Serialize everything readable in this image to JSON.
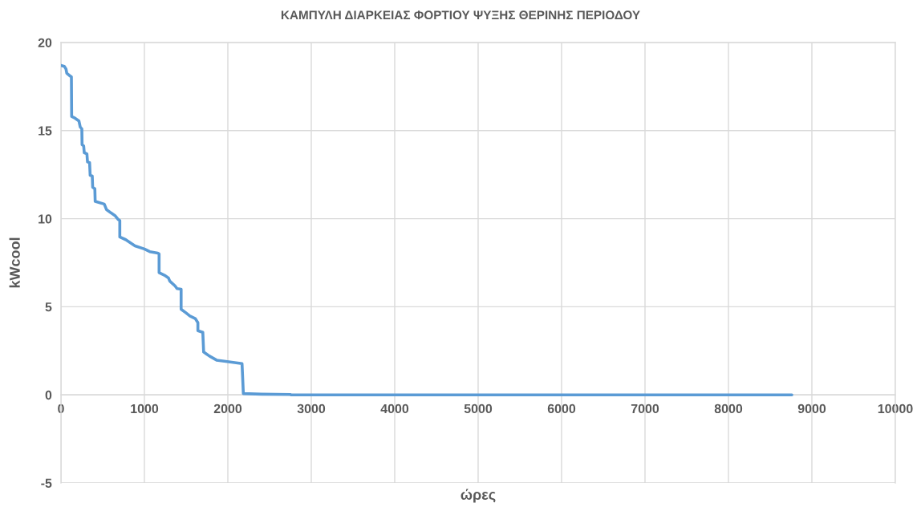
{
  "chart_data": {
    "type": "line",
    "title": "ΚΑΜΠΥΛΗ ΔΙΑΡΚΕΙΑΣ ΦΟΡΤΙΟΥ ΨΥΞΗΣ ΘΕΡΙΝΗΣ ΠΕΡΙΟΔΟΥ",
    "xlabel": "ώρες",
    "ylabel": "kWcool",
    "series": [
      {
        "color": "#5b9bd5",
        "x": [
          0,
          40,
          60,
          70,
          110,
          125,
          128,
          170,
          215,
          231,
          250,
          253,
          272,
          279,
          311,
          318,
          343,
          350,
          375,
          380,
          406,
          410,
          519,
          545,
          599,
          647,
          686,
          705,
          705,
          776,
          887,
          1000,
          1064,
          1160,
          1176,
          1176,
          1240,
          1288,
          1304,
          1368,
          1391,
          1440,
          1440,
          1497,
          1545,
          1609,
          1641,
          1641,
          1700,
          1710,
          1780,
          1865,
          1994,
          2100,
          2170,
          2186,
          2400,
          2747,
          2760,
          8760
        ],
        "values": [
          18.7,
          18.65,
          18.5,
          18.25,
          18.1,
          18.05,
          15.8,
          15.7,
          15.55,
          15.2,
          15.1,
          14.2,
          14.13,
          13.75,
          13.68,
          13.22,
          13.18,
          12.46,
          12.42,
          11.78,
          11.7,
          10.98,
          10.83,
          10.52,
          10.33,
          10.18,
          9.95,
          9.9,
          8.96,
          8.81,
          8.46,
          8.28,
          8.13,
          8.05,
          8.0,
          6.94,
          6.79,
          6.64,
          6.46,
          6.18,
          6.03,
          6.0,
          4.86,
          4.66,
          4.48,
          4.33,
          4.1,
          3.64,
          3.55,
          2.43,
          2.2,
          1.97,
          1.89,
          1.82,
          1.77,
          0.07,
          0.04,
          0.02,
          0,
          0
        ]
      }
    ],
    "xlim": [
      0,
      10000
    ],
    "xticks": [
      0,
      1000,
      2000,
      3000,
      4000,
      5000,
      6000,
      7000,
      8000,
      9000,
      10000
    ],
    "ylim": [
      -5,
      20
    ],
    "yticks": [
      -5,
      0,
      5,
      10,
      15,
      20
    ],
    "grid": true
  }
}
